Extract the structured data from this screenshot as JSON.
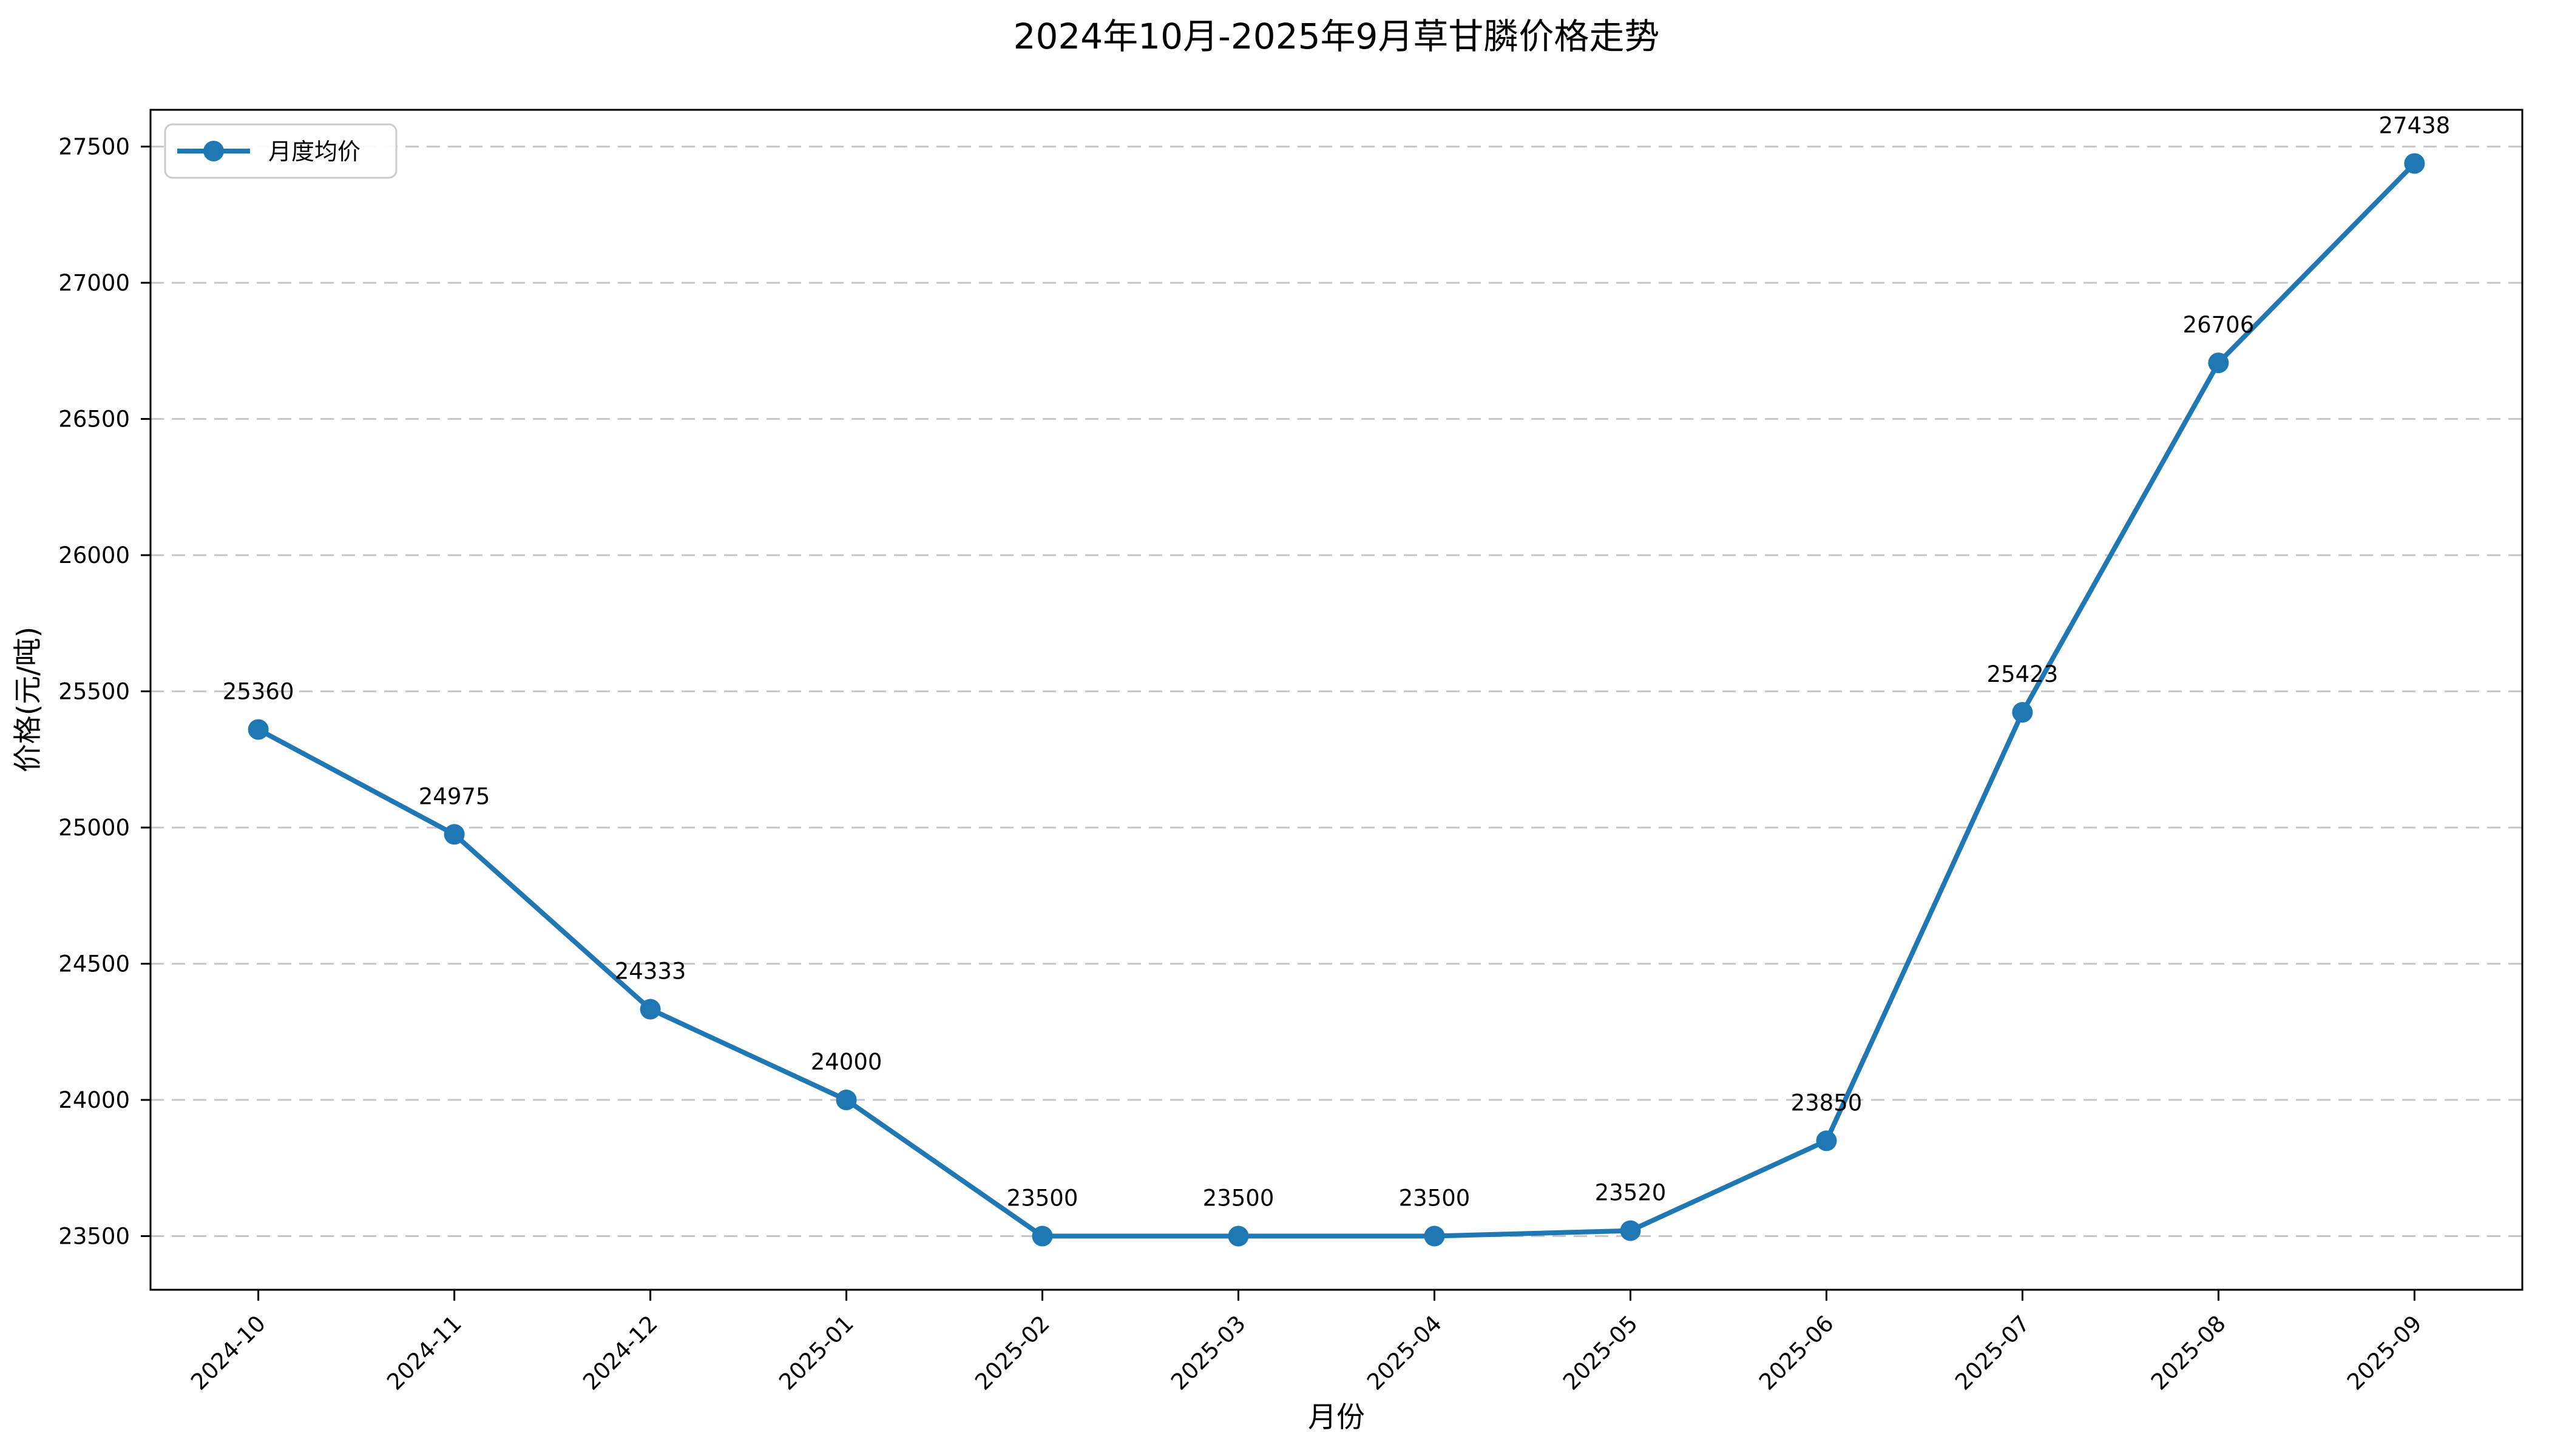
{
  "chart_data": {
    "type": "line",
    "title": "2024年10月-2025年9月草甘膦价格走势",
    "xlabel": "月份",
    "ylabel": "价格(元/吨)",
    "legend_entries": [
      "月度均价"
    ],
    "legend_position": "upper left",
    "categories": [
      "2024-10",
      "2024-11",
      "2024-12",
      "2025-01",
      "2025-02",
      "2025-03",
      "2025-04",
      "2025-05",
      "2025-06",
      "2025-07",
      "2025-08",
      "2025-09"
    ],
    "series": [
      {
        "name": "月度均价",
        "values": [
          25360,
          24975,
          24333,
          24000,
          23500,
          23500,
          23500,
          23520,
          23850,
          25423,
          26706,
          27438
        ]
      }
    ],
    "point_labels": [
      "25360",
      "24975",
      "24333",
      "24000",
      "23500",
      "23500",
      "23500",
      "23520",
      "23850",
      "25423",
      "26706",
      "27438"
    ],
    "yticks": [
      23500,
      24000,
      24500,
      25000,
      25500,
      26000,
      26500,
      27000,
      27500
    ],
    "ylim": [
      23303,
      27635
    ],
    "xtick_rotation_deg": 45,
    "grid": "horizontal-dashed",
    "marker": "circle",
    "colors": {
      "line": "#1f77b4",
      "marker": "#1f77b4",
      "grid": "#c7c7c7",
      "spine": "#000000",
      "tick": "#000000",
      "text": "#000000",
      "legend_border": "#cccccc",
      "background": "#ffffff"
    }
  }
}
